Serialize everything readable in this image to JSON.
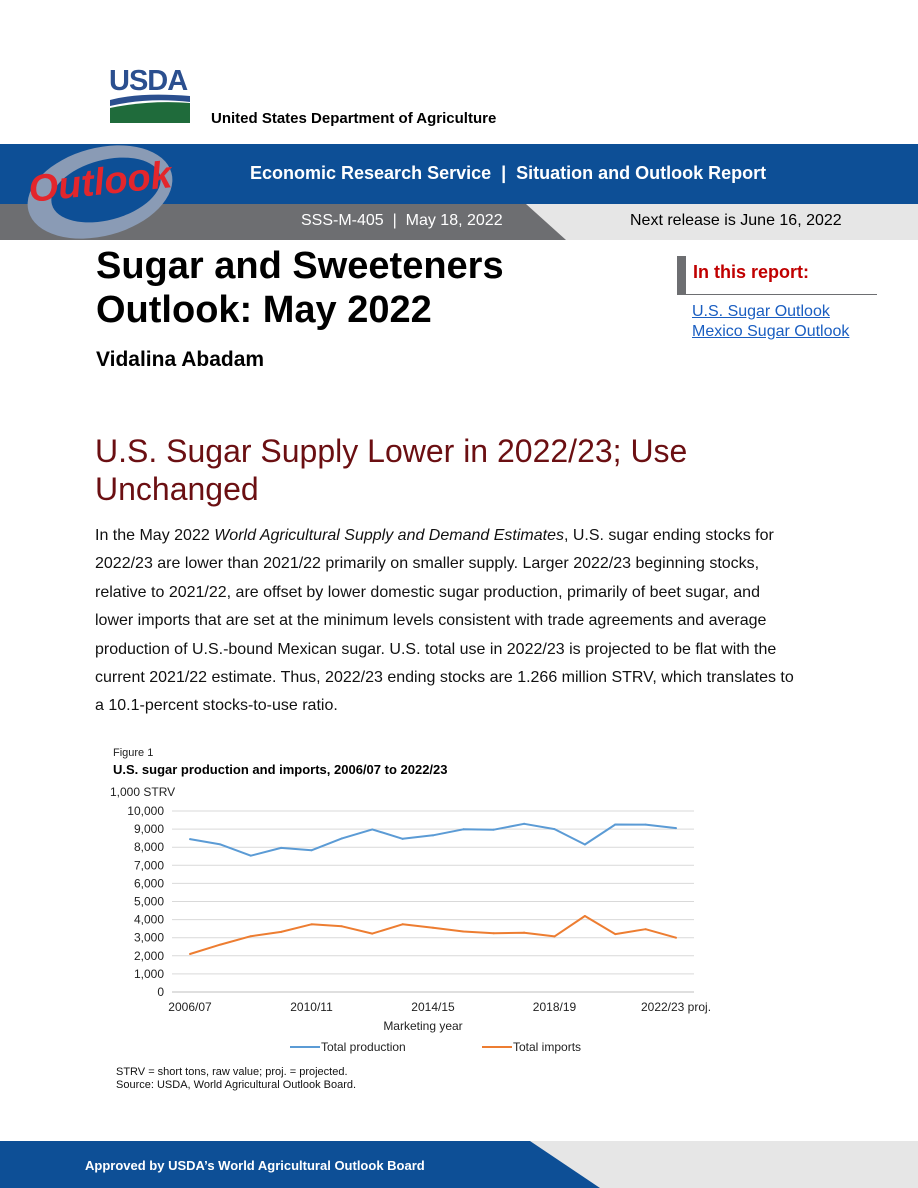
{
  "header": {
    "agency_logo": "USDA",
    "department": "United States Department of Agriculture",
    "banner_title": "Economic Research Service  |  Situation and Outlook Report",
    "outlook_logo": "Outlook",
    "report_id": "SSS-M-405  |  May 18, 2022",
    "next_release": "Next release is June 16, 2022"
  },
  "title": {
    "line1": "Sugar and Sweeteners",
    "line2": "Outlook: May 2022",
    "author": "Vidalina Abadam"
  },
  "in_this_report": {
    "heading": "In this report:",
    "links": [
      "U.S. Sugar Outlook",
      "Mexico Sugar Outlook"
    ]
  },
  "section": {
    "heading": "U.S. Sugar Supply Lower in 2022/23; Use Unchanged",
    "body_prefix": "In the May 2022 ",
    "body_italic": "World Agricultural Supply and Demand Estimates",
    "body_rest": ", U.S. sugar ending stocks for 2022/23 are lower than 2021/22 primarily on smaller supply. Larger 2022/23 beginning stocks, relative to 2021/22, are offset by lower domestic sugar production, primarily of beet sugar, and lower imports that are set at the minimum levels consistent with trade agreements and average production of U.S.-bound Mexican sugar. U.S. total use in 2022/23 is projected to be flat with the current 2021/22 estimate. Thus, 2022/23 ending stocks are 1.266 million STRV, which translates to a 10.1-percent stocks-to-use ratio."
  },
  "figure": {
    "label": "Figure 1",
    "title": "U.S. sugar production and imports, 2006/07 to 2022/23",
    "note_line1": "STRV = short tons, raw value; proj. = projected.",
    "note_line2": "Source: USDA, World Agricultural Outlook Board."
  },
  "chart_data": {
    "type": "line",
    "title": "U.S. sugar production and imports, 2006/07 to 2022/23",
    "ylabel": "1,000 STRV",
    "xlabel": "Marketing  year",
    "ylim": [
      0,
      10000
    ],
    "yticks": [
      0,
      1000,
      2000,
      3000,
      4000,
      5000,
      6000,
      7000,
      8000,
      9000,
      10000
    ],
    "ytick_labels": [
      "0",
      "1,000",
      "2,000",
      "3,000",
      "4,000",
      "5,000",
      "6,000",
      "7,000",
      "8,000",
      "9,000",
      "10,000"
    ],
    "x": [
      "2006/07",
      "2007/08",
      "2008/09",
      "2009/10",
      "2010/11",
      "2011/12",
      "2012/13",
      "2013/14",
      "2014/15",
      "2015/16",
      "2016/17",
      "2017/18",
      "2018/19",
      "2019/20",
      "2020/21",
      "2021/22",
      "2022/23"
    ],
    "xtick_labels": [
      "2006/07",
      "2010/11",
      "2014/15",
      "2018/19",
      "2022/23 proj."
    ],
    "xtick_indices": [
      0,
      4,
      8,
      12,
      16
    ],
    "grid": true,
    "legend_position": "bottom",
    "series": [
      {
        "name": "Total production",
        "color": "#5b9bd5",
        "values": [
          8445,
          8152,
          7532,
          7963,
          7831,
          8488,
          8981,
          8462,
          8656,
          8989,
          8969,
          9293,
          8999,
          8149,
          9255,
          9247,
          9055
        ]
      },
      {
        "name": "Total imports",
        "color": "#ed7d31",
        "values": [
          2100,
          2620,
          3083,
          3320,
          3738,
          3632,
          3224,
          3742,
          3550,
          3341,
          3244,
          3277,
          3070,
          4200,
          3200,
          3470,
          3000
        ]
      }
    ]
  },
  "footer": {
    "text": "Approved by USDA’s World Agricultural Outlook Board"
  }
}
